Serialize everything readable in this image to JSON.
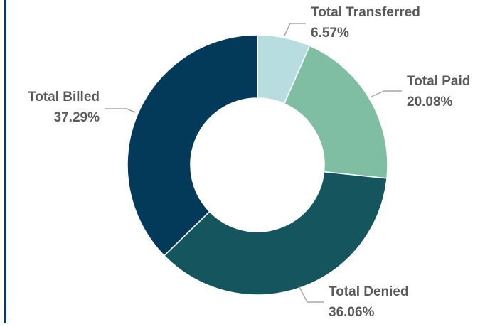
{
  "chart_data": {
    "type": "donut",
    "categories": [
      "Total Transferred",
      "Total Paid",
      "Total Denied",
      "Total Billed"
    ],
    "values": [
      6.57,
      20.08,
      36.06,
      37.29
    ],
    "value_labels": [
      "6.57%",
      "20.08%",
      "36.06%",
      "37.29%"
    ],
    "colors": [
      "#b7dde0",
      "#80bea3",
      "#15565e",
      "#033a5a"
    ]
  }
}
